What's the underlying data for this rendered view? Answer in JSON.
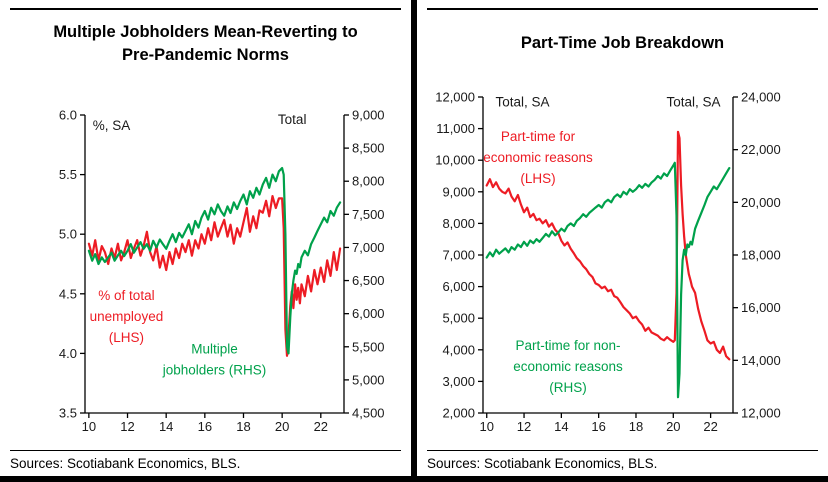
{
  "colors": {
    "red": "#ed1c24",
    "green": "#00a14b",
    "text": "#1a1a1a",
    "axis_line": "#000000"
  },
  "chart_data": [
    {
      "type": "line",
      "title": "Multiple Jobholders Mean-Reverting to Pre-Pandemic Norms",
      "title_lines": [
        "Multiple Jobholders Mean-Reverting to",
        "Pre-Pandemic Norms"
      ],
      "source": "Sources: Scotiabank Economics, BLS.",
      "x_axis": {
        "lim": [
          2009.8,
          2023.2
        ],
        "tick_values": [
          2010,
          2012,
          2014,
          2016,
          2018,
          2020,
          2022
        ],
        "tick_labels": [
          "10",
          "12",
          "14",
          "16",
          "18",
          "20",
          "22"
        ]
      },
      "left_axis": {
        "label": "%, SA",
        "lim": [
          3.5,
          6.0
        ],
        "tick_values": [
          3.5,
          4.0,
          4.5,
          5.0,
          5.5,
          6.0
        ],
        "tick_labels": [
          "3.5",
          "4.0",
          "4.5",
          "5.0",
          "5.5",
          "6.0"
        ]
      },
      "right_axis": {
        "label": "Total",
        "lim": [
          4500,
          9000
        ],
        "tick_values": [
          4500,
          5000,
          5500,
          6000,
          6500,
          7000,
          7500,
          8000,
          8500,
          9000
        ],
        "tick_labels": [
          "4,500",
          "5,000",
          "5,500",
          "6,000",
          "6,500",
          "7,000",
          "7,500",
          "8,000",
          "8,500",
          "9,000"
        ]
      },
      "x": [
        2010.0,
        2010.17,
        2010.33,
        2010.5,
        2010.67,
        2010.83,
        2011.0,
        2011.17,
        2011.33,
        2011.5,
        2011.67,
        2011.83,
        2012.0,
        2012.17,
        2012.33,
        2012.5,
        2012.67,
        2012.83,
        2013.0,
        2013.17,
        2013.33,
        2013.5,
        2013.67,
        2013.83,
        2014.0,
        2014.17,
        2014.33,
        2014.5,
        2014.67,
        2014.83,
        2015.0,
        2015.17,
        2015.33,
        2015.5,
        2015.67,
        2015.83,
        2016.0,
        2016.17,
        2016.33,
        2016.5,
        2016.67,
        2016.83,
        2017.0,
        2017.17,
        2017.33,
        2017.5,
        2017.67,
        2017.83,
        2018.0,
        2018.17,
        2018.33,
        2018.5,
        2018.67,
        2018.83,
        2019.0,
        2019.17,
        2019.33,
        2019.5,
        2019.67,
        2019.83,
        2020.0,
        2020.08,
        2020.17,
        2020.25,
        2020.33,
        2020.42,
        2020.5,
        2020.58,
        2020.67,
        2020.75,
        2020.83,
        2020.92,
        2021.0,
        2021.17,
        2021.33,
        2021.5,
        2021.67,
        2021.83,
        2022.0,
        2022.17,
        2022.33,
        2022.5,
        2022.67,
        2022.83,
        2023.0
      ],
      "series": [
        {
          "name": "% of total unemployed (LHS)",
          "axis": "left",
          "color": "red",
          "values": [
            4.92,
            4.82,
            4.95,
            4.78,
            4.9,
            4.85,
            4.75,
            4.88,
            4.8,
            4.92,
            4.78,
            4.85,
            4.95,
            4.8,
            4.88,
            4.95,
            4.82,
            4.9,
            5.02,
            4.85,
            4.78,
            4.9,
            4.72,
            4.82,
            4.7,
            4.85,
            4.75,
            4.88,
            4.8,
            4.92,
            4.85,
            4.95,
            4.82,
            4.95,
            4.88,
            5.0,
            4.92,
            5.05,
            4.95,
            5.1,
            4.98,
            5.05,
            5.12,
            4.98,
            5.08,
            4.92,
            5.05,
            4.98,
            5.1,
            5.22,
            5.02,
            5.15,
            5.05,
            5.2,
            5.18,
            5.28,
            5.15,
            5.32,
            5.22,
            5.3,
            5.3,
            5.05,
            4.2,
            3.98,
            4.15,
            4.4,
            4.52,
            4.38,
            4.58,
            4.45,
            4.55,
            4.42,
            4.58,
            4.48,
            4.65,
            4.52,
            4.7,
            4.58,
            4.72,
            4.6,
            4.78,
            4.65,
            4.85,
            4.7,
            4.88
          ]
        },
        {
          "name": "Multiple jobholders (RHS)",
          "axis": "right",
          "color": "green",
          "values": [
            6950,
            6800,
            6900,
            6750,
            6850,
            6780,
            6850,
            6920,
            6800,
            6880,
            6950,
            6870,
            6950,
            7050,
            6920,
            7000,
            7080,
            6980,
            7050,
            6950,
            7100,
            7000,
            7120,
            7050,
            6980,
            7100,
            7200,
            7080,
            7220,
            7150,
            7250,
            7350,
            7200,
            7400,
            7300,
            7450,
            7550,
            7420,
            7600,
            7500,
            7650,
            7550,
            7480,
            7620,
            7520,
            7680,
            7580,
            7700,
            7800,
            7650,
            7850,
            7750,
            7900,
            7800,
            7950,
            8050,
            7900,
            8100,
            8000,
            8150,
            8200,
            8100,
            7200,
            5500,
            5400,
            5950,
            6300,
            6500,
            6650,
            6600,
            6750,
            6700,
            6850,
            6950,
            6880,
            7050,
            7150,
            7250,
            7350,
            7450,
            7380,
            7550,
            7480,
            7600,
            7680
          ]
        }
      ],
      "annotations": [
        {
          "lines": [
            "%, SA"
          ],
          "color": "text",
          "fx": 0.03,
          "fy": 0.05,
          "anchor": "start"
        },
        {
          "lines": [
            "Total"
          ],
          "color": "text",
          "fx": 0.8,
          "fy": 0.03,
          "anchor": "middle"
        },
        {
          "lines": [
            "% of total",
            "unemployed",
            "(LHS)"
          ],
          "color": "red",
          "fx": 0.16,
          "fy": 0.62,
          "anchor": "middle"
        },
        {
          "lines": [
            "Multiple",
            "jobholders (RHS)"
          ],
          "color": "green",
          "fx": 0.5,
          "fy": 0.8,
          "anchor": "middle"
        }
      ]
    },
    {
      "type": "line",
      "title": "Part-Time Job Breakdown",
      "title_lines": [
        "Part-Time Job Breakdown"
      ],
      "source": "Sources: Scotiabank Economics, BLS.",
      "x_axis": {
        "lim": [
          2009.8,
          2023.2
        ],
        "tick_values": [
          2010,
          2012,
          2014,
          2016,
          2018,
          2020,
          2022
        ],
        "tick_labels": [
          "10",
          "12",
          "14",
          "16",
          "18",
          "20",
          "22"
        ]
      },
      "left_axis": {
        "label": "Total, SA",
        "lim": [
          2000,
          12000
        ],
        "tick_values": [
          2000,
          3000,
          4000,
          5000,
          6000,
          7000,
          8000,
          9000,
          10000,
          11000,
          12000
        ],
        "tick_labels": [
          "2,000",
          "3,000",
          "4,000",
          "5,000",
          "6,000",
          "7,000",
          "8,000",
          "9,000",
          "10,000",
          "11,000",
          "12,000"
        ]
      },
      "right_axis": {
        "label": "Total, SA",
        "lim": [
          12000,
          24000
        ],
        "tick_values": [
          12000,
          14000,
          16000,
          18000,
          20000,
          22000,
          24000
        ],
        "tick_labels": [
          "12,000",
          "14,000",
          "16,000",
          "18,000",
          "20,000",
          "22,000",
          "24,000"
        ]
      },
      "x": [
        2010.0,
        2010.17,
        2010.33,
        2010.5,
        2010.67,
        2010.83,
        2011.0,
        2011.17,
        2011.33,
        2011.5,
        2011.67,
        2011.83,
        2012.0,
        2012.17,
        2012.33,
        2012.5,
        2012.67,
        2012.83,
        2013.0,
        2013.17,
        2013.33,
        2013.5,
        2013.67,
        2013.83,
        2014.0,
        2014.17,
        2014.33,
        2014.5,
        2014.67,
        2014.83,
        2015.0,
        2015.17,
        2015.33,
        2015.5,
        2015.67,
        2015.83,
        2016.0,
        2016.17,
        2016.33,
        2016.5,
        2016.67,
        2016.83,
        2017.0,
        2017.17,
        2017.33,
        2017.5,
        2017.67,
        2017.83,
        2018.0,
        2018.17,
        2018.33,
        2018.5,
        2018.67,
        2018.83,
        2019.0,
        2019.17,
        2019.33,
        2019.5,
        2019.67,
        2019.83,
        2020.0,
        2020.08,
        2020.17,
        2020.25,
        2020.33,
        2020.42,
        2020.5,
        2020.58,
        2020.67,
        2020.75,
        2020.83,
        2020.92,
        2021.0,
        2021.17,
        2021.33,
        2021.5,
        2021.67,
        2021.83,
        2022.0,
        2022.17,
        2022.33,
        2022.5,
        2022.67,
        2022.83,
        2023.0
      ],
      "series": [
        {
          "name": "Part-time for economic reasons (LHS)",
          "axis": "left",
          "color": "red",
          "values": [
            9200,
            9400,
            9150,
            9300,
            9100,
            9000,
            8950,
            9100,
            8850,
            8700,
            8900,
            8600,
            8350,
            8500,
            8200,
            8300,
            8100,
            8150,
            8000,
            8100,
            7900,
            8000,
            7800,
            7700,
            7450,
            7300,
            7400,
            7200,
            7050,
            6900,
            6800,
            6650,
            6550,
            6400,
            6300,
            6100,
            6050,
            5950,
            6000,
            5850,
            5900,
            5700,
            5650,
            5500,
            5350,
            5250,
            5150,
            5000,
            5050,
            4900,
            4800,
            4600,
            4700,
            4550,
            4500,
            4450,
            4350,
            4300,
            4400,
            4320,
            4250,
            4300,
            5800,
            10900,
            10700,
            9200,
            8300,
            7600,
            7000,
            6700,
            6400,
            6200,
            6000,
            5800,
            5300,
            4900,
            4600,
            4300,
            4200,
            4250,
            4000,
            3900,
            4100,
            3800,
            3700
          ]
        },
        {
          "name": "Part-time for non-economic reasons (RHS)",
          "axis": "right",
          "color": "green",
          "values": [
            17900,
            18100,
            17950,
            18200,
            18050,
            18150,
            18250,
            18100,
            18300,
            18200,
            18400,
            18300,
            18500,
            18350,
            18550,
            18450,
            18600,
            18500,
            18650,
            18800,
            18700,
            18900,
            18750,
            18850,
            19000,
            18900,
            19100,
            19200,
            19100,
            19300,
            19400,
            19550,
            19450,
            19600,
            19700,
            19800,
            19900,
            19800,
            20000,
            20100,
            20000,
            20200,
            20300,
            20200,
            20400,
            20300,
            20500,
            20400,
            20500,
            20650,
            20550,
            20700,
            20600,
            20750,
            20850,
            21000,
            20900,
            21100,
            21000,
            21200,
            21400,
            21500,
            19500,
            12600,
            13500,
            16500,
            17800,
            18200,
            18000,
            18400,
            18300,
            18500,
            18400,
            19000,
            19300,
            19600,
            19900,
            20200,
            20400,
            20600,
            20500,
            20700,
            20900,
            21100,
            21300
          ]
        }
      ],
      "annotations": [
        {
          "lines": [
            "Total, SA"
          ],
          "color": "text",
          "fx": 0.05,
          "fy": 0.03,
          "anchor": "start"
        },
        {
          "lines": [
            "Total, SA"
          ],
          "color": "text",
          "fx": 0.95,
          "fy": 0.03,
          "anchor": "end"
        },
        {
          "lines": [
            "Part-time for",
            "economic reasons",
            "(LHS)"
          ],
          "color": "red",
          "fx": 0.22,
          "fy": 0.14,
          "anchor": "middle"
        },
        {
          "lines": [
            "Part-time for non-",
            "economic reasons",
            "(RHS)"
          ],
          "color": "green",
          "fx": 0.34,
          "fy": 0.8,
          "anchor": "middle"
        }
      ]
    }
  ]
}
